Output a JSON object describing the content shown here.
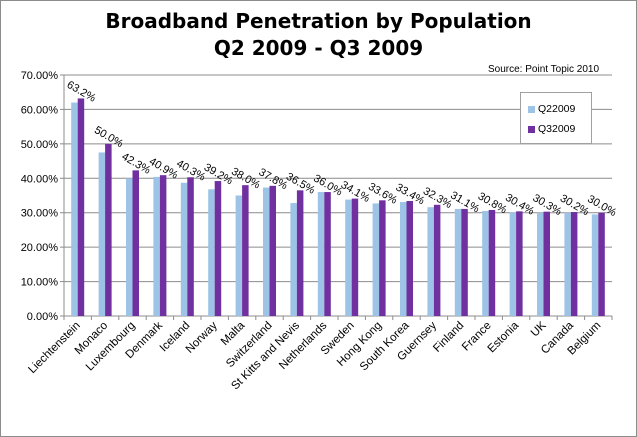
{
  "chart_data": {
    "type": "bar",
    "title_lines": [
      "Broadband Penetration by Population",
      "Q2 2009 - Q3 2009"
    ],
    "source": "Source: Point Topic 2010",
    "categories": [
      "Liechtenstein",
      "Monaco",
      "Luxembourg",
      "Denmark",
      "Iceland",
      "Norway",
      "Malta",
      "Switzerland",
      "St Kitts and Nevis",
      "Netherlands",
      "Sweden",
      "Hong Kong",
      "South Korea",
      "Guernsey",
      "Finland",
      "France",
      "Estonia",
      "UK",
      "Canada",
      "Belgium"
    ],
    "series": [
      {
        "name": "Q22009",
        "color": "#9dc3e6",
        "values": [
          62.0,
          47.5,
          40.0,
          40.4,
          38.7,
          36.8,
          35.0,
          37.3,
          32.8,
          36.0,
          33.8,
          32.7,
          33.1,
          31.6,
          31.1,
          30.5,
          30.1,
          30.0,
          30.0,
          29.5
        ]
      },
      {
        "name": "Q32009",
        "color": "#7030a0",
        "values": [
          63.2,
          50.0,
          42.3,
          40.9,
          40.3,
          39.2,
          38.0,
          37.8,
          36.5,
          36.0,
          34.1,
          33.6,
          33.4,
          32.3,
          31.1,
          30.8,
          30.4,
          30.3,
          30.2,
          30.0
        ]
      }
    ],
    "data_labels": [
      "63.2%",
      "50.0%",
      "42.3%",
      "40.9%",
      "40.3%",
      "39.2%",
      "38.0%",
      "37.8%",
      "36.5%",
      "36.0%",
      "34.1%",
      "33.6%",
      "33.4%",
      "32.3%",
      "31.1%",
      "30.8%",
      "30.4%",
      "30.3%",
      "30.2%",
      "30.0%"
    ],
    "yticks": [
      "0.00%",
      "10.00%",
      "20.00%",
      "30.00%",
      "40.00%",
      "50.00%",
      "60.00%",
      "70.00%"
    ],
    "ylim": [
      0,
      70
    ],
    "grid": true,
    "legend_position": "right"
  }
}
